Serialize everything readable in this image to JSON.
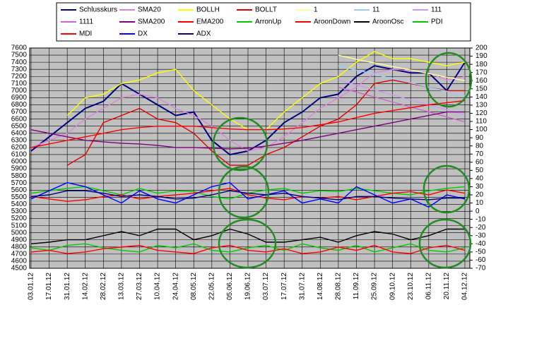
{
  "chart_data": {
    "type": "line",
    "categories": [
      "03.01.12",
      "17.01.12",
      "31.01.12",
      "14.02.12",
      "28.02.12",
      "13.03.12",
      "27.03.12",
      "10.04.12",
      "24.04.12",
      "08.05.12",
      "22.05.12",
      "05.06.12",
      "19.06.12",
      "03.07.12",
      "17.07.12",
      "31.07.12",
      "14.08.12",
      "28.08.12",
      "11.09.12",
      "25.09.12",
      "09.10.12",
      "23.10.12",
      "06.11.12",
      "20.11.12",
      "04.12.12"
    ],
    "ylim": [
      4500,
      7600
    ],
    "yticks": [
      4500,
      4600,
      4700,
      4800,
      4900,
      5000,
      5100,
      5200,
      5300,
      5400,
      5500,
      5600,
      5700,
      5800,
      5900,
      6000,
      6100,
      6200,
      6300,
      6400,
      6500,
      6600,
      6700,
      6800,
      6900,
      7000,
      7100,
      7200,
      7300,
      7400,
      7500,
      7600
    ],
    "y2lim": [
      -70,
      200
    ],
    "y2ticks": [
      -70,
      -60,
      -50,
      -40,
      -30,
      -20,
      -10,
      0,
      10,
      20,
      30,
      40,
      50,
      60,
      70,
      80,
      90,
      100,
      110,
      120,
      130,
      140,
      150,
      160,
      170,
      180,
      190,
      200
    ],
    "grid": true,
    "series": [
      {
        "name": "Schlusskurs",
        "color": "#000080",
        "values": [
          6150,
          6350,
          6550,
          6750,
          6850,
          7100,
          6950,
          6800,
          6650,
          6700,
          6300,
          6100,
          6150,
          6300,
          6550,
          6700,
          6900,
          6950,
          7200,
          7350,
          7300,
          7250,
          7250,
          7000,
          7400
        ]
      },
      {
        "name": "SMA20",
        "color": "#e080e0",
        "values": [
          6200,
          6300,
          6400,
          6600,
          6750,
          6900,
          6950,
          6900,
          6750,
          6650,
          6500,
          6300,
          6150,
          6200,
          6350,
          6550,
          6750,
          6900,
          7050,
          7250,
          7300,
          7280,
          7250,
          7150,
          7200
        ]
      },
      {
        "name": "BOLLH",
        "color": "#ffff00",
        "values": [
          null,
          null,
          6650,
          6900,
          6950,
          7100,
          7150,
          7250,
          7300,
          7000,
          6800,
          6600,
          6450,
          6450,
          6700,
          6900,
          7100,
          7200,
          7400,
          7550,
          7450,
          7450,
          7400,
          7350,
          7400
        ]
      },
      {
        "name": "BOLLT",
        "color": "#e00000",
        "values": [
          null,
          null,
          5950,
          6100,
          6550,
          6650,
          6750,
          6600,
          6550,
          6400,
          6150,
          5950,
          5950,
          6100,
          6200,
          6350,
          6500,
          6600,
          6800,
          7100,
          7150,
          7100,
          7050,
          7000,
          7000
        ]
      },
      {
        "name": "1",
        "color": "#ffff99",
        "values": [
          null,
          null,
          null,
          null,
          null,
          null,
          null,
          null,
          null,
          null,
          null,
          null,
          null,
          null,
          null,
          null,
          null,
          7500,
          7440,
          7390,
          7340,
          7290,
          7240,
          7190,
          7140
        ]
      },
      {
        "name": "11",
        "color": "#99ccff",
        "values": [
          null,
          null,
          null,
          null,
          null,
          null,
          null,
          null,
          null,
          null,
          null,
          null,
          null,
          null,
          null,
          null,
          null,
          7350,
          7290,
          7230,
          7170,
          7110,
          7050,
          6990,
          6930
        ]
      },
      {
        "name": "111",
        "color": "#cc99ff",
        "values": [
          null,
          null,
          null,
          null,
          null,
          null,
          null,
          null,
          null,
          null,
          null,
          null,
          null,
          null,
          null,
          null,
          null,
          7150,
          7080,
          7010,
          6940,
          6870,
          6800,
          6730,
          6660
        ]
      },
      {
        "name": "1111",
        "color": "#cc66cc",
        "values": [
          null,
          null,
          null,
          null,
          null,
          null,
          null,
          null,
          null,
          null,
          null,
          null,
          null,
          null,
          null,
          null,
          null,
          7050,
          6980,
          6910,
          6840,
          6770,
          6700,
          6630,
          6560
        ]
      },
      {
        "name": "SMA200",
        "color": "#800080",
        "values": [
          6450,
          6400,
          6350,
          6300,
          6280,
          6260,
          6250,
          6230,
          6200,
          6200,
          6190,
          6180,
          6190,
          6220,
          6260,
          6300,
          6350,
          6400,
          6450,
          6500,
          6550,
          6600,
          6650,
          6700,
          6700
        ]
      },
      {
        "name": "EMA200",
        "color": "#ff0000",
        "values": [
          6200,
          6250,
          6300,
          6350,
          6400,
          6450,
          6480,
          6500,
          6500,
          6500,
          6480,
          6460,
          6450,
          6450,
          6460,
          6480,
          6520,
          6560,
          6620,
          6680,
          6720,
          6760,
          6800,
          6830,
          6860
        ]
      },
      {
        "name": "ArronUp",
        "color": "#00cc00",
        "axis": "y2",
        "values": [
          -45,
          -48,
          -42,
          -40,
          -45,
          -48,
          -50,
          -42,
          -45,
          -40,
          -48,
          -50,
          -45,
          -42,
          -48,
          -40,
          -45,
          -48,
          -42,
          -50,
          -45,
          -40,
          -48,
          -50,
          -45
        ]
      },
      {
        "name": "AroonDown",
        "color": "#ff0000",
        "axis": "y2",
        "values": [
          -50,
          -48,
          -52,
          -50,
          -46,
          -44,
          -42,
          -48,
          -50,
          -52,
          -45,
          -42,
          -48,
          -50,
          -46,
          -52,
          -50,
          -44,
          -48,
          -42,
          -50,
          -52,
          -45,
          -42,
          -48
        ]
      },
      {
        "name": "AroonOsc",
        "color": "#000000",
        "axis": "y2",
        "values": [
          -40,
          -38,
          -35,
          -35,
          -30,
          -25,
          -30,
          -22,
          -22,
          -35,
          -30,
          -22,
          -28,
          -38,
          -38,
          -35,
          -32,
          -38,
          -30,
          -25,
          -28,
          -35,
          -30,
          -22,
          -22
        ]
      },
      {
        "name": "PDI",
        "color": "#00cc00",
        "axis": "y2",
        "values": [
          22,
          25,
          28,
          30,
          25,
          20,
          28,
          22,
          25,
          24,
          18,
          15,
          22,
          26,
          28,
          22,
          25,
          24,
          28,
          25,
          22,
          20,
          25,
          28,
          30
        ]
      },
      {
        "name": "MDI",
        "color": "#ff0000",
        "axis": "y2",
        "values": [
          18,
          15,
          12,
          14,
          18,
          20,
          15,
          18,
          20,
          22,
          25,
          28,
          20,
          16,
          14,
          18,
          16,
          18,
          14,
          18,
          22,
          24,
          20,
          26,
          22
        ]
      },
      {
        "name": "DX",
        "color": "#0000ff",
        "axis": "y2",
        "values": [
          15,
          25,
          35,
          30,
          20,
          10,
          25,
          15,
          10,
          20,
          30,
          35,
          15,
          20,
          25,
          10,
          15,
          10,
          30,
          20,
          10,
          15,
          5,
          20,
          15
        ]
      },
      {
        "name": "ADX",
        "color": "#000080",
        "axis": "y2",
        "values": [
          18,
          20,
          25,
          25,
          22,
          18,
          20,
          18,
          15,
          16,
          20,
          25,
          22,
          20,
          22,
          18,
          16,
          14,
          18,
          18,
          16,
          15,
          14,
          16,
          16
        ]
      }
    ]
  }
}
